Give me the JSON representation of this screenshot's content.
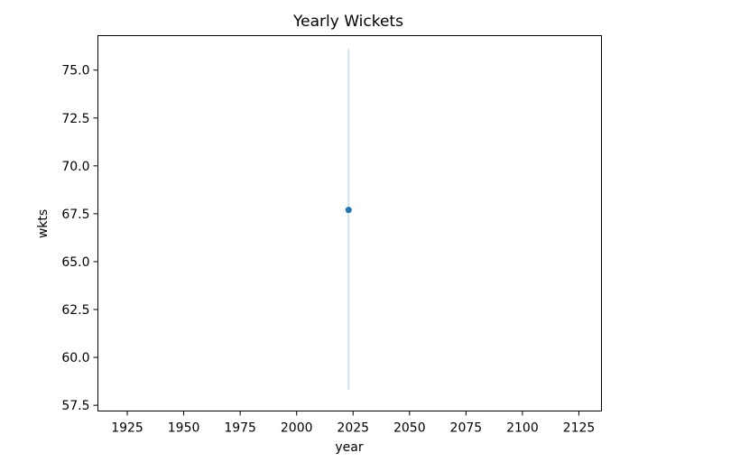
{
  "chart_data": {
    "type": "line",
    "title": "Yearly Wickets",
    "xlabel": "year",
    "ylabel": "wkts",
    "xlim": [
      1912,
      2135
    ],
    "ylim": [
      57.2,
      76.8
    ],
    "xticks": [
      1925,
      1950,
      1975,
      2000,
      2025,
      2050,
      2075,
      2100,
      2125
    ],
    "yticks": [
      57.5,
      60.0,
      62.5,
      65.0,
      67.5,
      70.0,
      72.5,
      75.0
    ],
    "ytick_labels": [
      "57.5",
      "60.0",
      "62.5",
      "65.0",
      "67.5",
      "70.0",
      "72.5",
      "75.0"
    ],
    "series": [
      {
        "x": [
          2023
        ],
        "y": [
          67.7
        ],
        "error_band": {
          "low": 58.3,
          "high": 76.1
        },
        "color": "#1f77b4"
      }
    ],
    "grid": false,
    "legend": false
  }
}
